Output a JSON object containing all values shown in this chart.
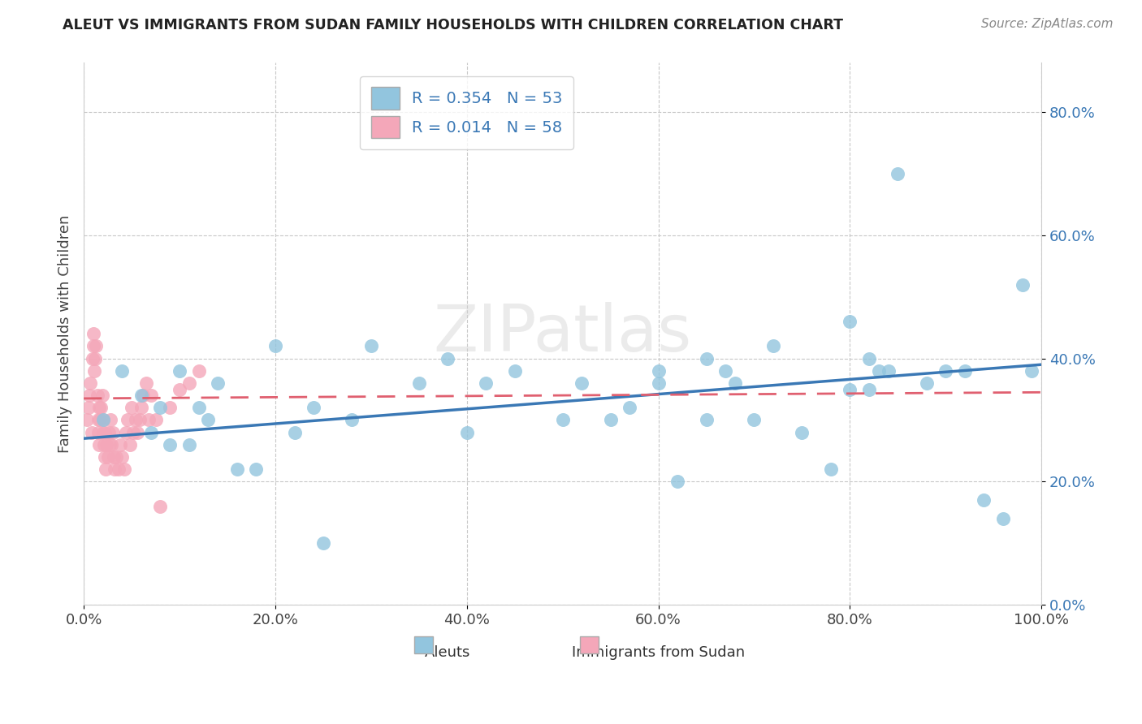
{
  "title": "ALEUT VS IMMIGRANTS FROM SUDAN FAMILY HOUSEHOLDS WITH CHILDREN CORRELATION CHART",
  "source": "Source: ZipAtlas.com",
  "ylabel": "Family Households with Children",
  "legend_aleut": "R = 0.354   N = 53",
  "legend_sudan": "R = 0.014   N = 58",
  "aleut_color": "#92C5DE",
  "sudan_color": "#F4A7B9",
  "aleut_line_color": "#3A78B5",
  "sudan_line_color": "#E06070",
  "legend_text_color": "#3A78B5",
  "tick_color": "#3A78B5",
  "watermark": "ZIPatlas",
  "ylim": [
    0.0,
    0.88
  ],
  "xlim": [
    0.0,
    1.0
  ],
  "aleut_x": [
    0.02,
    0.04,
    0.06,
    0.07,
    0.08,
    0.09,
    0.1,
    0.11,
    0.12,
    0.13,
    0.14,
    0.16,
    0.18,
    0.2,
    0.22,
    0.24,
    0.25,
    0.28,
    0.3,
    0.35,
    0.38,
    0.4,
    0.42,
    0.45,
    0.5,
    0.52,
    0.55,
    0.57,
    0.6,
    0.62,
    0.65,
    0.68,
    0.7,
    0.72,
    0.75,
    0.78,
    0.8,
    0.82,
    0.84,
    0.85,
    0.88,
    0.9,
    0.92,
    0.94,
    0.96,
    0.98,
    0.99,
    0.6,
    0.65,
    0.67,
    0.8,
    0.82,
    0.83
  ],
  "aleut_y": [
    0.3,
    0.38,
    0.34,
    0.28,
    0.32,
    0.26,
    0.38,
    0.26,
    0.32,
    0.3,
    0.36,
    0.22,
    0.22,
    0.42,
    0.28,
    0.32,
    0.1,
    0.3,
    0.42,
    0.36,
    0.4,
    0.28,
    0.36,
    0.38,
    0.3,
    0.36,
    0.3,
    0.32,
    0.36,
    0.2,
    0.3,
    0.36,
    0.3,
    0.42,
    0.28,
    0.22,
    0.46,
    0.4,
    0.38,
    0.7,
    0.36,
    0.38,
    0.38,
    0.17,
    0.14,
    0.52,
    0.38,
    0.38,
    0.4,
    0.38,
    0.35,
    0.35,
    0.38
  ],
  "sudan_x": [
    0.003,
    0.005,
    0.006,
    0.007,
    0.008,
    0.009,
    0.01,
    0.01,
    0.011,
    0.012,
    0.013,
    0.014,
    0.015,
    0.015,
    0.016,
    0.016,
    0.017,
    0.018,
    0.019,
    0.02,
    0.02,
    0.021,
    0.022,
    0.022,
    0.023,
    0.024,
    0.025,
    0.026,
    0.027,
    0.028,
    0.029,
    0.03,
    0.031,
    0.032,
    0.034,
    0.036,
    0.038,
    0.04,
    0.042,
    0.044,
    0.046,
    0.048,
    0.05,
    0.052,
    0.054,
    0.056,
    0.058,
    0.06,
    0.062,
    0.065,
    0.068,
    0.07,
    0.075,
    0.08,
    0.09,
    0.1,
    0.11,
    0.12
  ],
  "sudan_y": [
    0.3,
    0.32,
    0.34,
    0.36,
    0.28,
    0.4,
    0.44,
    0.42,
    0.38,
    0.4,
    0.42,
    0.34,
    0.3,
    0.28,
    0.32,
    0.26,
    0.3,
    0.32,
    0.34,
    0.28,
    0.3,
    0.26,
    0.28,
    0.24,
    0.22,
    0.26,
    0.24,
    0.28,
    0.26,
    0.3,
    0.26,
    0.28,
    0.24,
    0.22,
    0.24,
    0.22,
    0.26,
    0.24,
    0.22,
    0.28,
    0.3,
    0.26,
    0.32,
    0.28,
    0.3,
    0.28,
    0.3,
    0.32,
    0.34,
    0.36,
    0.3,
    0.34,
    0.3,
    0.16,
    0.32,
    0.35,
    0.36,
    0.38
  ],
  "aleut_line_x0": 0.0,
  "aleut_line_x1": 1.0,
  "aleut_line_y0": 0.27,
  "aleut_line_y1": 0.39,
  "sudan_line_x0": 0.0,
  "sudan_line_x1": 1.0,
  "sudan_line_y0": 0.335,
  "sudan_line_y1": 0.345
}
